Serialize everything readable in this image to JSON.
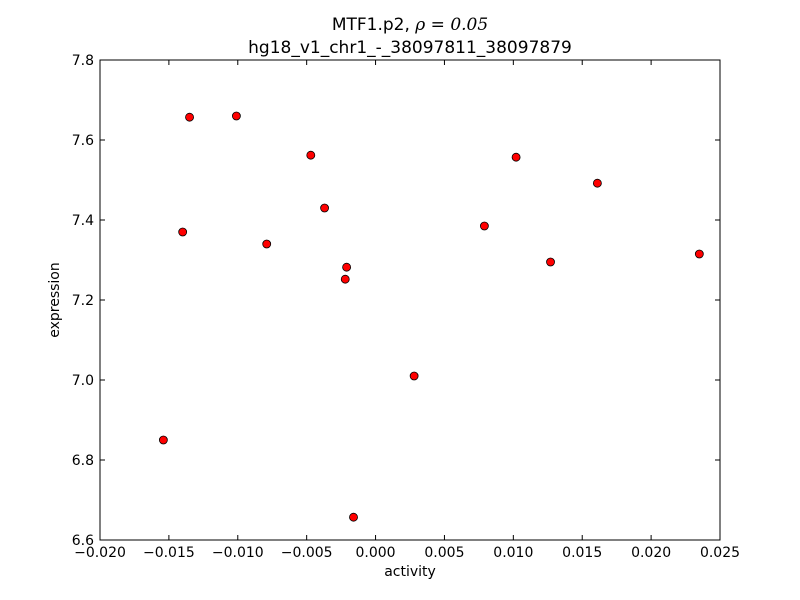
{
  "chart_data": {
    "type": "scatter",
    "title_gene": "MTF1.p2, ",
    "title_rho": "ρ = 0.05",
    "subtitle": "hg18_v1_chr1_-_38097811_38097879",
    "xlabel": "activity",
    "ylabel": "expression",
    "xlim": [
      -0.02,
      0.025
    ],
    "ylim": [
      6.6,
      7.8
    ],
    "x_ticks": [
      -0.02,
      -0.015,
      -0.01,
      -0.005,
      0.0,
      0.005,
      0.01,
      0.015,
      0.02,
      0.025
    ],
    "x_tick_labels": [
      "−0.020",
      "−0.015",
      "−0.010",
      "−0.005",
      "0.000",
      "0.005",
      "0.010",
      "0.015",
      "0.020",
      "0.025"
    ],
    "y_ticks": [
      6.6,
      6.8,
      7.0,
      7.2,
      7.4,
      7.6,
      7.8
    ],
    "y_tick_labels": [
      "6.6",
      "6.8",
      "7.0",
      "7.2",
      "7.4",
      "7.6",
      "7.8"
    ],
    "grid": false,
    "marker_color": "#ff0000",
    "marker_edge_color": "#000000",
    "points": [
      {
        "x": -0.0154,
        "y": 6.85
      },
      {
        "x": -0.014,
        "y": 7.37
      },
      {
        "x": -0.0135,
        "y": 7.657
      },
      {
        "x": -0.0101,
        "y": 7.66
      },
      {
        "x": -0.0079,
        "y": 7.34
      },
      {
        "x": -0.0047,
        "y": 7.562
      },
      {
        "x": -0.0037,
        "y": 7.43
      },
      {
        "x": -0.0021,
        "y": 7.282
      },
      {
        "x": -0.0022,
        "y": 7.252
      },
      {
        "x": -0.0016,
        "y": 6.657
      },
      {
        "x": 0.0028,
        "y": 7.01
      },
      {
        "x": 0.0079,
        "y": 7.385
      },
      {
        "x": 0.0102,
        "y": 7.557
      },
      {
        "x": 0.0127,
        "y": 7.295
      },
      {
        "x": 0.0161,
        "y": 7.492
      },
      {
        "x": 0.0235,
        "y": 7.315
      }
    ]
  }
}
